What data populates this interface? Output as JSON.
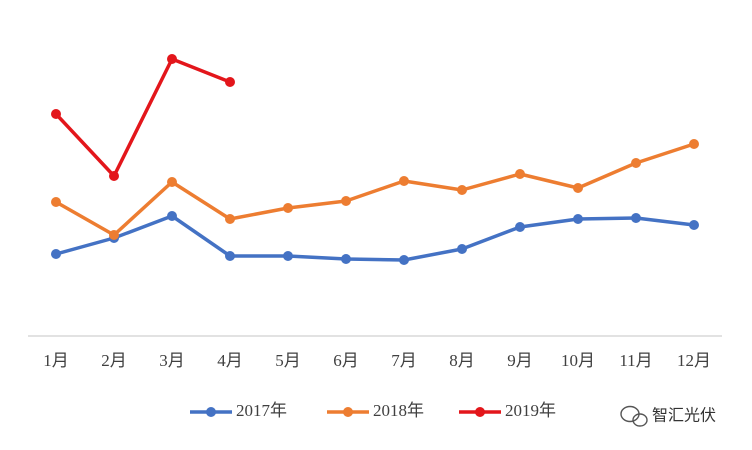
{
  "chart_data": {
    "type": "line",
    "categories": [
      "1月",
      "2月",
      "3月",
      "4月",
      "5月",
      "6月",
      "7月",
      "8月",
      "9月",
      "10月",
      "11月",
      "12月"
    ],
    "series": [
      {
        "name": "2017年",
        "color": "#4472c4",
        "values": [
          82,
          98,
          120,
          80,
          80,
          77,
          76,
          87,
          109,
          117,
          118,
          111
        ]
      },
      {
        "name": "2018年",
        "color": "#ed7d31",
        "values": [
          134,
          101,
          154,
          117,
          128,
          135,
          155,
          146,
          162,
          148,
          173,
          192
        ]
      },
      {
        "name": "2019年",
        "color": "#e3161b",
        "values": [
          222,
          160,
          277,
          254,
          null,
          null,
          null,
          null,
          null,
          null,
          null,
          null
        ]
      }
    ],
    "ylim": [
      0,
      300
    ],
    "watermark": "智汇光伏"
  }
}
